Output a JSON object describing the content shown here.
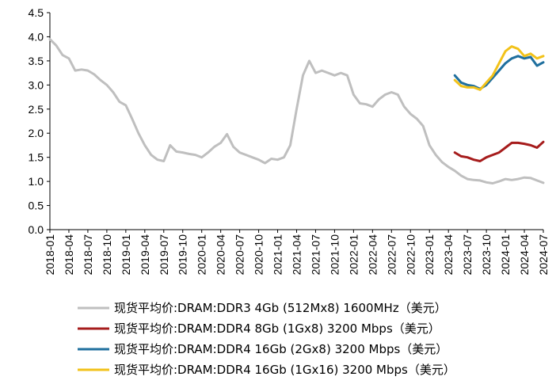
{
  "chart_data": {
    "type": "line",
    "title": "",
    "xlabel": "",
    "ylabel": "",
    "ylim": [
      0,
      4.5
    ],
    "yticks": [
      "0.0",
      "0.5",
      "1.0",
      "1.5",
      "2.0",
      "2.5",
      "3.0",
      "3.5",
      "4.0",
      "4.5"
    ],
    "xlim": [
      "2018-01",
      "2024-07"
    ],
    "xticks": [
      "2018-01",
      "2018-04",
      "2018-07",
      "2018-10",
      "2019-01",
      "2019-04",
      "2019-07",
      "2019-10",
      "2020-01",
      "2020-04",
      "2020-07",
      "2020-10",
      "2021-01",
      "2021-04",
      "2021-07",
      "2021-10",
      "2022-01",
      "2022-04",
      "2022-07",
      "2022-10",
      "2023-01",
      "2023-04",
      "2023-07",
      "2023-10",
      "2024-01",
      "2024-04",
      "2024-07"
    ],
    "grid": false,
    "legend_position": "bottom",
    "series": [
      {
        "name": "现货平均价:DRAM:DDR3 4Gb (512Mx8) 1600MHz（美元）",
        "color": "#bfbfbf",
        "points": [
          [
            "2018-01",
            3.95
          ],
          [
            "2018-02",
            3.82
          ],
          [
            "2018-03",
            3.62
          ],
          [
            "2018-04",
            3.55
          ],
          [
            "2018-05",
            3.3
          ],
          [
            "2018-06",
            3.32
          ],
          [
            "2018-07",
            3.3
          ],
          [
            "2018-08",
            3.22
          ],
          [
            "2018-09",
            3.1
          ],
          [
            "2018-10",
            3.0
          ],
          [
            "2018-11",
            2.85
          ],
          [
            "2018-12",
            2.65
          ],
          [
            "2019-01",
            2.58
          ],
          [
            "2019-02",
            2.3
          ],
          [
            "2019-03",
            2.0
          ],
          [
            "2019-04",
            1.75
          ],
          [
            "2019-05",
            1.55
          ],
          [
            "2019-06",
            1.45
          ],
          [
            "2019-07",
            1.42
          ],
          [
            "2019-08",
            1.75
          ],
          [
            "2019-09",
            1.62
          ],
          [
            "2019-10",
            1.6
          ],
          [
            "2019-11",
            1.57
          ],
          [
            "2019-12",
            1.55
          ],
          [
            "2020-01",
            1.5
          ],
          [
            "2020-02",
            1.6
          ],
          [
            "2020-03",
            1.72
          ],
          [
            "2020-04",
            1.8
          ],
          [
            "2020-05",
            1.98
          ],
          [
            "2020-06",
            1.72
          ],
          [
            "2020-07",
            1.6
          ],
          [
            "2020-08",
            1.55
          ],
          [
            "2020-09",
            1.5
          ],
          [
            "2020-10",
            1.45
          ],
          [
            "2020-11",
            1.38
          ],
          [
            "2020-12",
            1.47
          ],
          [
            "2021-01",
            1.45
          ],
          [
            "2021-02",
            1.5
          ],
          [
            "2021-03",
            1.75
          ],
          [
            "2021-04",
            2.5
          ],
          [
            "2021-05",
            3.2
          ],
          [
            "2021-06",
            3.5
          ],
          [
            "2021-07",
            3.25
          ],
          [
            "2021-08",
            3.3
          ],
          [
            "2021-09",
            3.25
          ],
          [
            "2021-10",
            3.2
          ],
          [
            "2021-11",
            3.25
          ],
          [
            "2021-12",
            3.2
          ],
          [
            "2022-01",
            2.8
          ],
          [
            "2022-02",
            2.62
          ],
          [
            "2022-03",
            2.6
          ],
          [
            "2022-04",
            2.55
          ],
          [
            "2022-05",
            2.7
          ],
          [
            "2022-06",
            2.8
          ],
          [
            "2022-07",
            2.85
          ],
          [
            "2022-08",
            2.8
          ],
          [
            "2022-09",
            2.55
          ],
          [
            "2022-10",
            2.4
          ],
          [
            "2022-11",
            2.3
          ],
          [
            "2022-12",
            2.15
          ],
          [
            "2023-01",
            1.75
          ],
          [
            "2023-02",
            1.55
          ],
          [
            "2023-03",
            1.4
          ],
          [
            "2023-04",
            1.3
          ],
          [
            "2023-05",
            1.22
          ],
          [
            "2023-06",
            1.12
          ],
          [
            "2023-07",
            1.05
          ],
          [
            "2023-08",
            1.03
          ],
          [
            "2023-09",
            1.02
          ],
          [
            "2023-10",
            0.98
          ],
          [
            "2023-11",
            0.96
          ],
          [
            "2023-12",
            1.0
          ],
          [
            "2024-01",
            1.05
          ],
          [
            "2024-02",
            1.03
          ],
          [
            "2024-03",
            1.05
          ],
          [
            "2024-04",
            1.08
          ],
          [
            "2024-05",
            1.07
          ],
          [
            "2024-06",
            1.02
          ],
          [
            "2024-07",
            0.97
          ]
        ]
      },
      {
        "name": "现货平均价:DRAM:DDR4 8Gb (1Gx8) 3200 Mbps（美元）",
        "color": "#a61c1c",
        "points": [
          [
            "2023-05",
            1.6
          ],
          [
            "2023-06",
            1.52
          ],
          [
            "2023-07",
            1.5
          ],
          [
            "2023-08",
            1.45
          ],
          [
            "2023-09",
            1.42
          ],
          [
            "2023-10",
            1.5
          ],
          [
            "2023-11",
            1.55
          ],
          [
            "2023-12",
            1.6
          ],
          [
            "2024-01",
            1.7
          ],
          [
            "2024-02",
            1.8
          ],
          [
            "2024-03",
            1.8
          ],
          [
            "2024-04",
            1.78
          ],
          [
            "2024-05",
            1.75
          ],
          [
            "2024-06",
            1.7
          ],
          [
            "2024-07",
            1.82
          ]
        ]
      },
      {
        "name": "现货平均价:DRAM:DDR4 16Gb (2Gx8) 3200 Mbps（美元）",
        "color": "#1f6f9e",
        "points": [
          [
            "2023-05",
            3.2
          ],
          [
            "2023-06",
            3.05
          ],
          [
            "2023-07",
            3.0
          ],
          [
            "2023-08",
            2.98
          ],
          [
            "2023-09",
            2.92
          ],
          [
            "2023-10",
            3.0
          ],
          [
            "2023-11",
            3.15
          ],
          [
            "2023-12",
            3.3
          ],
          [
            "2024-01",
            3.45
          ],
          [
            "2024-02",
            3.55
          ],
          [
            "2024-03",
            3.6
          ],
          [
            "2024-04",
            3.55
          ],
          [
            "2024-05",
            3.58
          ],
          [
            "2024-06",
            3.4
          ],
          [
            "2024-07",
            3.47
          ]
        ]
      },
      {
        "name": "现货平均价:DRAM:DDR4 16Gb (1Gx16) 3200 Mbps（美元）",
        "color": "#f2c21a",
        "points": [
          [
            "2023-05",
            3.1
          ],
          [
            "2023-06",
            2.98
          ],
          [
            "2023-07",
            2.95
          ],
          [
            "2023-08",
            2.95
          ],
          [
            "2023-09",
            2.9
          ],
          [
            "2023-10",
            3.05
          ],
          [
            "2023-11",
            3.2
          ],
          [
            "2023-12",
            3.45
          ],
          [
            "2024-01",
            3.7
          ],
          [
            "2024-02",
            3.8
          ],
          [
            "2024-03",
            3.75
          ],
          [
            "2024-04",
            3.6
          ],
          [
            "2024-05",
            3.65
          ],
          [
            "2024-06",
            3.55
          ],
          [
            "2024-07",
            3.6
          ]
        ]
      }
    ]
  }
}
